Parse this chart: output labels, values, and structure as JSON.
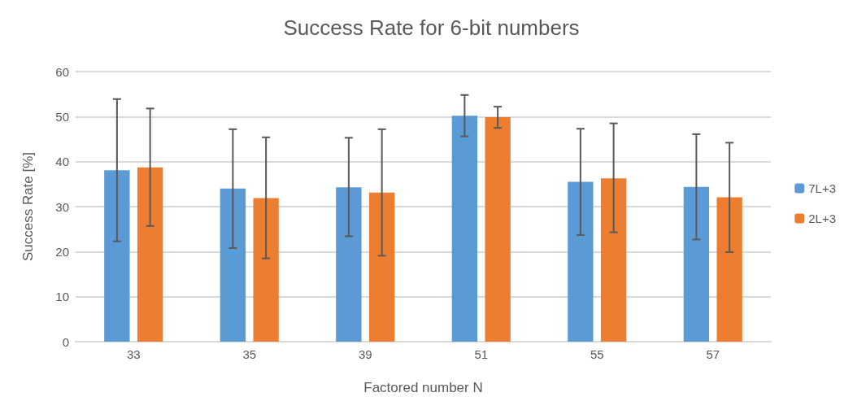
{
  "chart_data": {
    "type": "bar",
    "title": "Success Rate for 6-bit numbers",
    "xlabel": "Factored number N",
    "ylabel": "Success Rate [%]",
    "categories": [
      "33",
      "35",
      "39",
      "51",
      "55",
      "57"
    ],
    "series": [
      {
        "name": "7L+3",
        "color": "#5b9bd5",
        "values": [
          38.1,
          34.0,
          34.3,
          50.2,
          35.5,
          34.4
        ],
        "errors": [
          [
            22.3,
            53.9
          ],
          [
            20.8,
            47.2
          ],
          [
            23.4,
            45.3
          ],
          [
            45.6,
            54.8
          ],
          [
            23.7,
            47.3
          ],
          [
            22.7,
            46.1
          ]
        ]
      },
      {
        "name": "2L+3",
        "color": "#ed7d31",
        "values": [
          38.7,
          31.9,
          33.1,
          49.9,
          36.3,
          32.1
        ],
        "errors": [
          [
            25.7,
            51.8
          ],
          [
            18.5,
            45.4
          ],
          [
            19.1,
            47.2
          ],
          [
            47.5,
            52.2
          ],
          [
            24.3,
            48.5
          ],
          [
            19.9,
            44.2
          ]
        ]
      }
    ],
    "ylim": [
      0,
      60
    ],
    "yticks": [
      0,
      10,
      20,
      30,
      40,
      50,
      60
    ],
    "grid": "y",
    "legend": "right"
  }
}
